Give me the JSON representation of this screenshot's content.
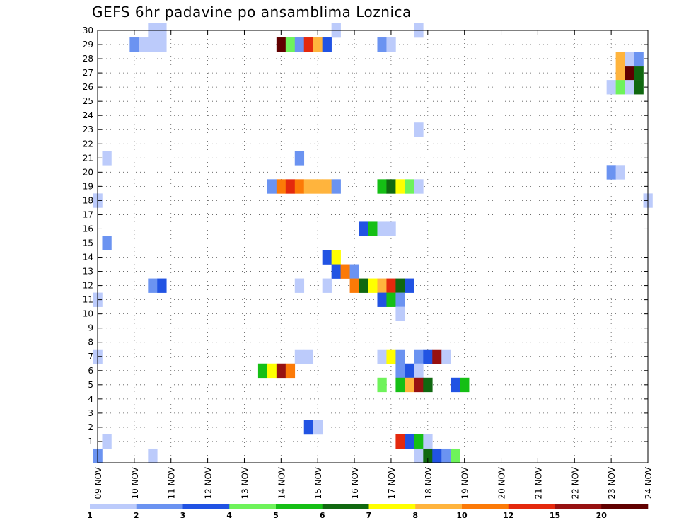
{
  "chart_data": {
    "type": "heatmap",
    "title": "GEFS 6hr padavine po ansamblima Loznica",
    "xlabel": "",
    "ylabel": "",
    "x_tick_labels": [
      "09 NOV",
      "10 NOV",
      "11 NOV",
      "12 NOV",
      "13 NOV",
      "14 NOV",
      "15 NOV",
      "16 NOV",
      "17 NOV",
      "18 NOV",
      "19 NOV",
      "20 NOV",
      "21 NOV",
      "22 NOV",
      "23 NOV",
      "24 NOV"
    ],
    "x_range_steps": [
      0,
      60
    ],
    "y_ticks": [
      1,
      2,
      3,
      4,
      5,
      6,
      7,
      8,
      9,
      10,
      11,
      12,
      13,
      14,
      15,
      16,
      17,
      18,
      19,
      20,
      21,
      22,
      23,
      24,
      25,
      26,
      27,
      28,
      29,
      30
    ],
    "y_range": [
      0,
      30
    ],
    "grid": true,
    "colorbar": {
      "levels": [
        1,
        2,
        3,
        4,
        5,
        6,
        7,
        8,
        10,
        12,
        15,
        20
      ],
      "colors": [
        "#bccbfb",
        "#6b93f1",
        "#2153e3",
        "#6ef35a",
        "#15bf15",
        "#106810",
        "#ffff00",
        "#ffb43d",
        "#fc7a07",
        "#e4290d",
        "#971111",
        "#610000"
      ]
    },
    "cells_legend": "each cell: [x step (6h steps from 09 NOV 00z), member 0-30, class index into colorbar.colors]",
    "cells": [
      [
        4,
        29,
        1
      ],
      [
        5,
        29,
        0
      ],
      [
        6,
        30,
        0
      ],
      [
        6,
        29,
        0
      ],
      [
        7,
        29,
        0
      ],
      [
        7,
        30,
        0
      ],
      [
        20,
        29,
        11
      ],
      [
        21,
        29,
        3
      ],
      [
        22,
        29,
        1
      ],
      [
        23,
        29,
        9
      ],
      [
        24,
        29,
        7
      ],
      [
        25,
        29,
        2
      ],
      [
        26,
        30,
        0
      ],
      [
        31,
        29,
        1
      ],
      [
        32,
        29,
        0
      ],
      [
        35,
        30,
        0
      ],
      [
        57,
        28,
        7
      ],
      [
        58,
        28,
        0
      ],
      [
        59,
        28,
        1
      ],
      [
        57,
        27,
        7
      ],
      [
        58,
        27,
        11
      ],
      [
        59,
        27,
        5
      ],
      [
        56,
        26,
        0
      ],
      [
        57,
        26,
        3
      ],
      [
        58,
        26,
        0
      ],
      [
        59,
        26,
        5
      ],
      [
        35,
        23,
        0
      ],
      [
        1,
        21,
        0
      ],
      [
        22,
        21,
        1
      ],
      [
        56,
        20,
        1
      ],
      [
        57,
        20,
        0
      ],
      [
        19,
        19,
        1
      ],
      [
        20,
        19,
        8
      ],
      [
        21,
        19,
        9
      ],
      [
        22,
        19,
        8
      ],
      [
        23,
        19,
        7
      ],
      [
        24,
        19,
        7
      ],
      [
        25,
        19,
        7
      ],
      [
        26,
        19,
        1
      ],
      [
        31,
        19,
        4
      ],
      [
        32,
        19,
        5
      ],
      [
        33,
        19,
        6
      ],
      [
        34,
        19,
        3
      ],
      [
        35,
        19,
        0
      ],
      [
        0,
        18,
        0
      ],
      [
        60,
        18,
        0
      ],
      [
        29,
        16,
        2
      ],
      [
        30,
        16,
        4
      ],
      [
        31,
        16,
        0
      ],
      [
        32,
        16,
        0
      ],
      [
        1,
        15,
        1
      ],
      [
        25,
        14,
        2
      ],
      [
        26,
        14,
        6
      ],
      [
        26,
        13,
        2
      ],
      [
        27,
        13,
        8
      ],
      [
        28,
        13,
        1
      ],
      [
        28,
        12,
        8
      ],
      [
        29,
        12,
        5
      ],
      [
        30,
        12,
        6
      ],
      [
        31,
        12,
        7
      ],
      [
        32,
        12,
        9
      ],
      [
        33,
        12,
        5
      ],
      [
        34,
        12,
        2
      ],
      [
        6,
        12,
        1
      ],
      [
        7,
        12,
        2
      ],
      [
        22,
        12,
        0
      ],
      [
        25,
        12,
        0
      ],
      [
        0,
        11,
        0
      ],
      [
        31,
        11,
        2
      ],
      [
        32,
        11,
        4
      ],
      [
        33,
        11,
        1
      ],
      [
        33,
        10,
        0
      ],
      [
        0,
        7,
        0
      ],
      [
        22,
        7,
        0
      ],
      [
        23,
        7,
        0
      ],
      [
        31,
        7,
        0
      ],
      [
        32,
        7,
        6
      ],
      [
        33,
        7,
        1
      ],
      [
        35,
        7,
        1
      ],
      [
        36,
        7,
        2
      ],
      [
        37,
        7,
        10
      ],
      [
        38,
        7,
        0
      ],
      [
        18,
        6,
        4
      ],
      [
        19,
        6,
        6
      ],
      [
        20,
        6,
        10
      ],
      [
        21,
        6,
        8
      ],
      [
        33,
        6,
        1
      ],
      [
        34,
        6,
        2
      ],
      [
        35,
        6,
        0
      ],
      [
        31,
        5,
        3
      ],
      [
        33,
        5,
        4
      ],
      [
        34,
        5,
        7
      ],
      [
        35,
        5,
        10
      ],
      [
        36,
        5,
        5
      ],
      [
        39,
        5,
        2
      ],
      [
        40,
        5,
        4
      ],
      [
        23,
        2,
        2
      ],
      [
        24,
        2,
        0
      ],
      [
        1,
        1,
        0
      ],
      [
        33,
        1,
        9
      ],
      [
        34,
        1,
        2
      ],
      [
        35,
        1,
        4
      ],
      [
        36,
        1,
        0
      ],
      [
        0,
        0,
        1
      ],
      [
        6,
        0,
        0
      ],
      [
        35,
        0,
        0
      ],
      [
        36,
        0,
        5
      ],
      [
        37,
        0,
        2
      ],
      [
        38,
        0,
        1
      ],
      [
        39,
        0,
        3
      ]
    ]
  }
}
